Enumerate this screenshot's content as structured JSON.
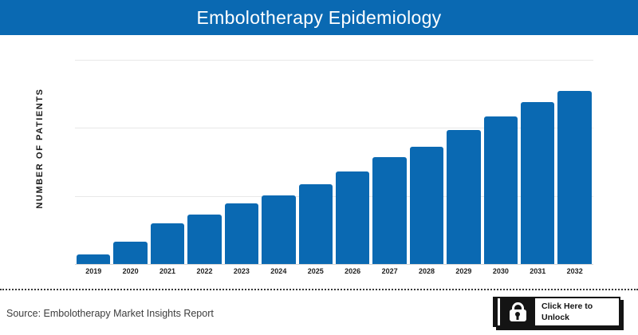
{
  "header": {
    "title": "Embolotherapy Epidemiology",
    "bg_color": "#0a69b2",
    "text_color": "#ffffff"
  },
  "chart_data": {
    "type": "bar",
    "title": "Embolotherapy Epidemiology",
    "categories": [
      "2019",
      "2020",
      "2021",
      "2022",
      "2023",
      "2024",
      "2025",
      "2026",
      "2027",
      "2028",
      "2029",
      "2030",
      "2031",
      "2032"
    ],
    "values": [
      5.5,
      12.9,
      23.5,
      28.6,
      35.0,
      39.6,
      46.1,
      53.5,
      61.8,
      67.7,
      77.4,
      85.3,
      93.5,
      100.0
    ],
    "xlabel": "",
    "ylabel": "NUMBER OF PATIENTS",
    "ylim": [
      0,
      118
    ],
    "yticks_visible": false,
    "grid": "horizontal, 4 light lines evenly spaced, no numeric labels",
    "legend": false,
    "bar_color": "#0a69b2",
    "gridline_color": "#e8e8e8"
  },
  "footer": {
    "source": "Source: Embolotherapy Market Insights Report",
    "unlock_button": {
      "label": "Click Here to Unlock",
      "icon": "lock-icon",
      "bg_color": "#ffffff",
      "accent_color": "#141414"
    }
  }
}
